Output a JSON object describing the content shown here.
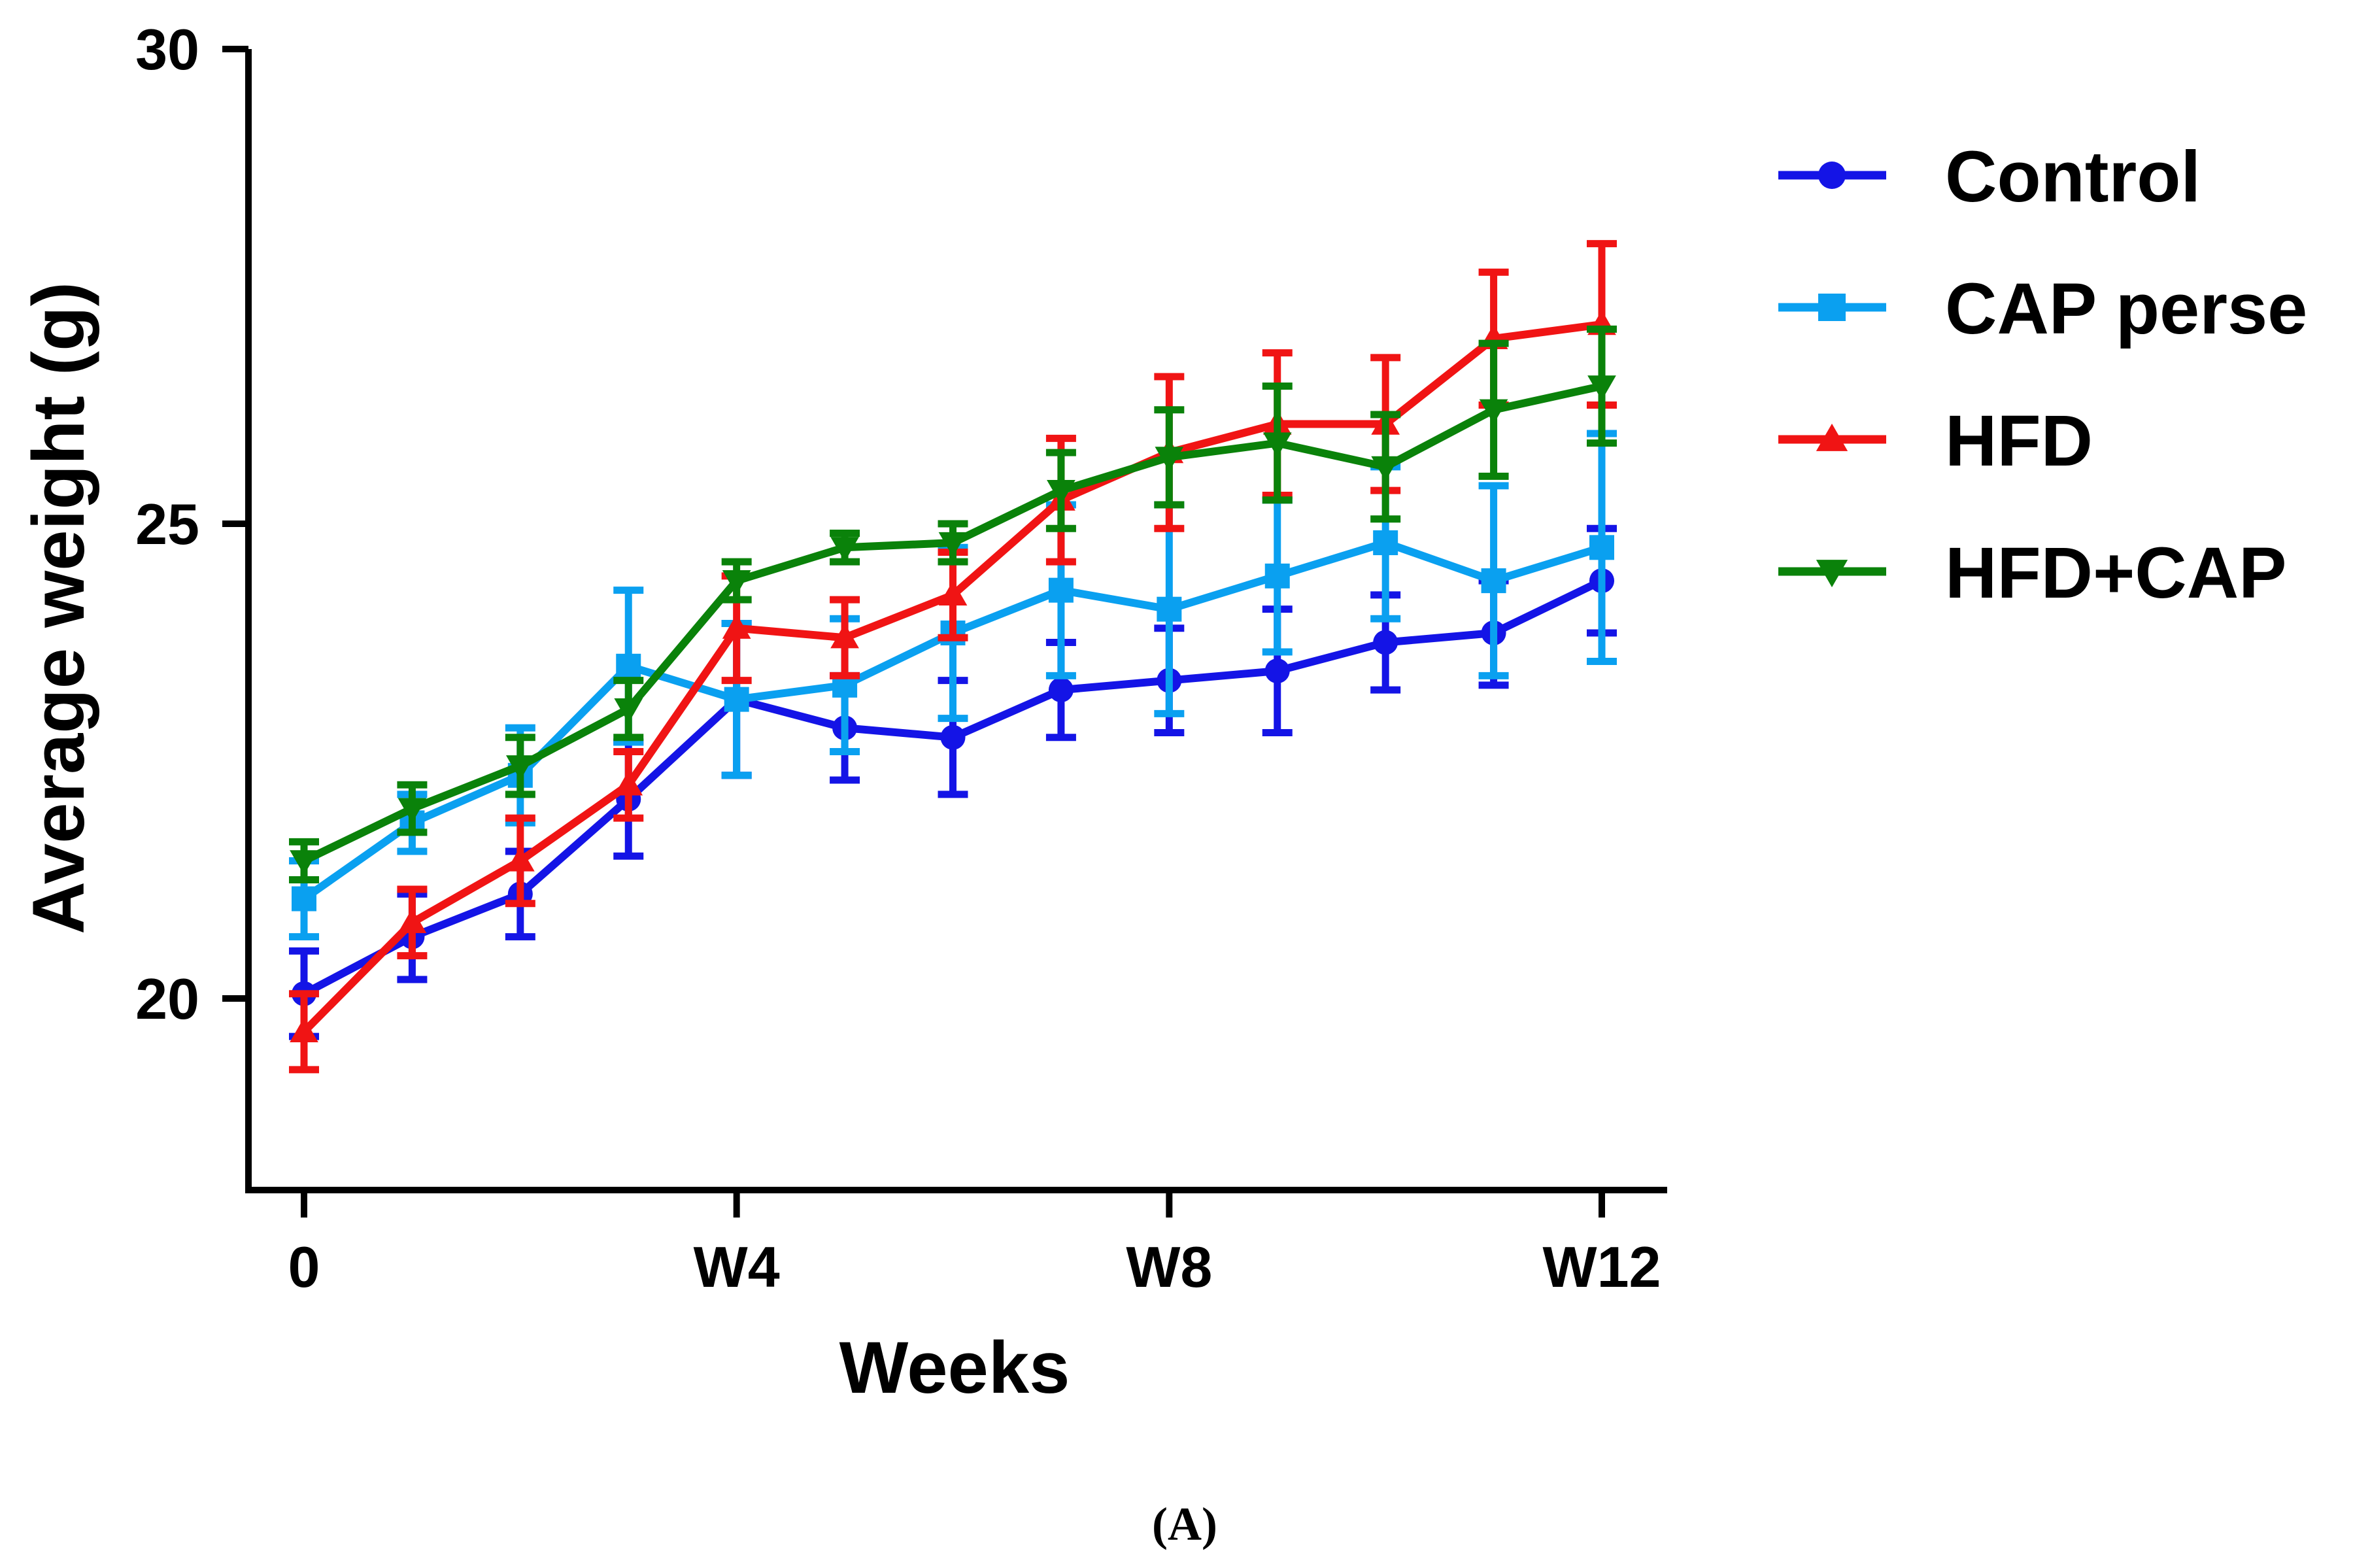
{
  "chart_data": {
    "type": "line",
    "title": "",
    "xlabel": "Weeks",
    "ylabel": "Average weight (g)",
    "panel_label": "(A)",
    "x": [
      0,
      1,
      2,
      3,
      4,
      5,
      6,
      7,
      8,
      9,
      10,
      11,
      12
    ],
    "xlim": [
      -0.5,
      12.6
    ],
    "ylim": [
      18,
      30
    ],
    "x_ticks": [
      0,
      4,
      8,
      12
    ],
    "x_tick_labels": [
      "0",
      "W4",
      "W8",
      "W12"
    ],
    "y_ticks": [
      20,
      25,
      30
    ],
    "y_tick_labels": [
      "20",
      "25",
      "30"
    ],
    "legend_position": "right",
    "series": [
      {
        "name": "Control",
        "color": "#1414e6",
        "marker": "circle",
        "values": [
          20.05,
          20.65,
          21.1,
          22.1,
          23.15,
          22.85,
          22.75,
          23.25,
          23.35,
          23.45,
          23.75,
          23.85,
          24.4
        ],
        "errors": [
          0.45,
          0.45,
          0.45,
          0.6,
          0.8,
          0.55,
          0.6,
          0.5,
          0.55,
          0.65,
          0.5,
          0.55,
          0.55
        ]
      },
      {
        "name": "CAP perse",
        "color": "#0aa0f0",
        "marker": "square",
        "values": [
          21.05,
          21.85,
          22.35,
          23.5,
          23.15,
          23.3,
          23.85,
          24.3,
          24.1,
          24.45,
          24.8,
          24.4,
          24.75
        ],
        "errors": [
          0.4,
          0.3,
          0.5,
          0.8,
          0.8,
          0.7,
          0.9,
          0.9,
          1.1,
          0.8,
          0.8,
          1.0,
          1.2
        ]
      },
      {
        "name": "HFD",
        "color": "#f01414",
        "marker": "triangle-up",
        "values": [
          19.65,
          20.8,
          21.45,
          22.25,
          23.9,
          23.8,
          24.25,
          25.25,
          25.75,
          26.05,
          26.05,
          26.95,
          27.1
        ],
        "errors": [
          0.4,
          0.35,
          0.45,
          0.35,
          0.55,
          0.4,
          0.45,
          0.65,
          0.8,
          0.75,
          0.7,
          0.7,
          0.85
        ]
      },
      {
        "name": "HFD+CAP",
        "color": "#0a820a",
        "marker": "triangle-down",
        "values": [
          21.45,
          22.0,
          22.45,
          23.05,
          24.4,
          24.75,
          24.8,
          25.35,
          25.7,
          25.85,
          25.6,
          26.2,
          26.45
        ],
        "errors": [
          0.2,
          0.25,
          0.3,
          0.3,
          0.2,
          0.15,
          0.2,
          0.4,
          0.5,
          0.6,
          0.55,
          0.7,
          0.6
        ]
      }
    ]
  }
}
